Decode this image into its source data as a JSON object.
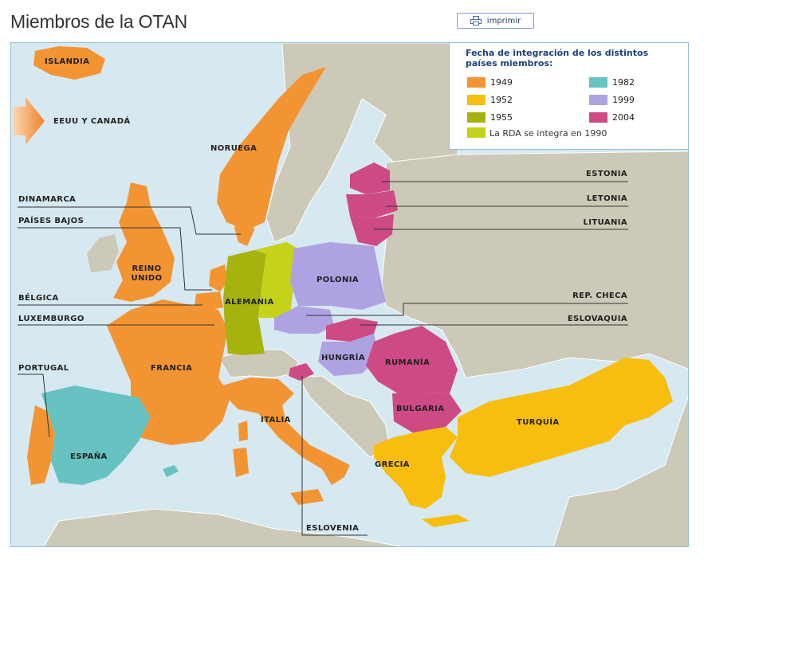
{
  "page": {
    "title": "Miembros de la OTAN",
    "print_label": "imprimir"
  },
  "legend": {
    "title": "Fecha de integración de los distintos países miembros:",
    "items": [
      {
        "year": "1949",
        "color": "#f39433"
      },
      {
        "year": "1952",
        "color": "#f7be0f"
      },
      {
        "year": "1955",
        "color": "#a6b30e"
      },
      {
        "year": "1982",
        "color": "#67c3c1"
      },
      {
        "year": "1999",
        "color": "#aea2e3"
      },
      {
        "year": "2004",
        "color": "#cd4a85"
      }
    ],
    "rda_color": "#c5d21a",
    "rda_note": "La RDA se integra en 1990"
  },
  "map": {
    "sea_color": "#d6e8f0",
    "land_color": "#cdc9b8",
    "arrow_label": "EEUU Y CANADÁ",
    "countries": {
      "islandia": "ISLANDIA",
      "noruega": "NORUEGA",
      "reino_unido": "REINO UNIDO",
      "alemania": "ALEMANIA",
      "polonia": "POLONIA",
      "francia": "FRANCIA",
      "hungria": "HUNGRÍA",
      "rumania": "RUMANÍA",
      "bulgaria": "BULGARIA",
      "turquia": "TURQUÍA",
      "italia": "ITALIA",
      "espana": "ESPAÑA",
      "grecia": "GRECIA"
    },
    "callouts": {
      "dinamarca": "DINAMARCA",
      "paises_bajos": "PAÍSES BAJOS",
      "belgica": "BÉLGICA",
      "luxemburgo": "LUXEMBURGO",
      "portugal": "PORTUGAL",
      "estonia": "ESTONIA",
      "letonia": "LETONIA",
      "lituania": "LITUANIA",
      "rep_checa": "REP. CHECA",
      "eslovaquia": "ESLOVAQUIA",
      "eslovenia": "ESLOVENIA"
    }
  }
}
